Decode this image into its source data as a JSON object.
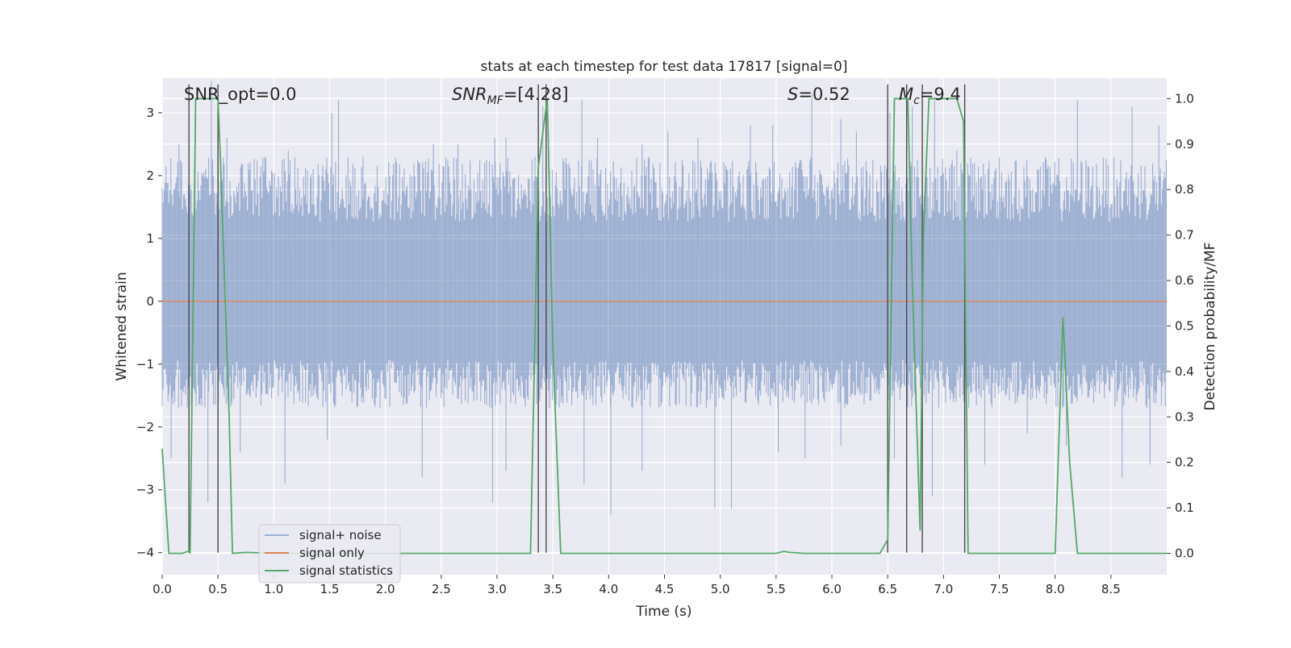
{
  "chart_data": {
    "type": "line",
    "title": "stats at each timestep for test data 17817 [signal=0]",
    "xlabel": "Time (s)",
    "ylabel_left": "Whitened strain",
    "ylabel_right": "Detection probability/MF",
    "xlim": [
      0,
      9.0
    ],
    "ylim_left": [
      -4.35,
      3.55
    ],
    "ylim_right": [
      -0.047,
      1.045
    ],
    "grid": true,
    "background": "#eaeaf2",
    "x_ticks": [
      "0.0",
      "0.5",
      "1.0",
      "1.5",
      "2.0",
      "2.5",
      "3.0",
      "3.5",
      "4.0",
      "4.5",
      "5.0",
      "5.5",
      "6.0",
      "6.5",
      "7.0",
      "7.5",
      "8.0",
      "8.5"
    ],
    "y_ticks_left": [
      "3",
      "2",
      "1",
      "0",
      "−1",
      "−2",
      "−3",
      "−4"
    ],
    "y_ticks_right": [
      "1.0",
      "0.9",
      "0.8",
      "0.7",
      "0.6",
      "0.5",
      "0.4",
      "0.3",
      "0.2",
      "0.1",
      "0.0"
    ],
    "annotations": {
      "snr_opt": "SNR_opt=0.0",
      "snr_mf_sym": "SNR",
      "snr_mf_sub": "MF",
      "snr_mf_val": "=[4.28]",
      "s_sym": "S",
      "s_val": "=0.52",
      "mc_sym": "M",
      "mc_sub": "c",
      "mc_val": "=9.4"
    },
    "legend": {
      "placement": "lower-left",
      "entries": [
        "signal+ noise",
        "signal only",
        "signal statistics"
      ]
    },
    "series": [
      {
        "name": "signal+ noise",
        "axis": "left",
        "color": "#4c72b0",
        "kind": "noise",
        "envelope": [
          -1.7,
          2.3
        ],
        "peaks_up": [
          [
            0.15,
            2.5
          ],
          [
            0.44,
            3.5
          ],
          [
            0.58,
            2.6
          ],
          [
            0.92,
            2.3
          ],
          [
            1.13,
            2.4
          ],
          [
            1.52,
            3.0
          ],
          [
            1.58,
            3.2
          ],
          [
            1.8,
            2.3
          ],
          [
            2.43,
            2.5
          ],
          [
            2.65,
            2.5
          ],
          [
            2.98,
            2.6
          ],
          [
            3.08,
            2.6
          ],
          [
            3.34,
            2.3
          ],
          [
            3.41,
            3.1
          ],
          [
            3.76,
            3.2
          ],
          [
            3.9,
            2.6
          ],
          [
            4.3,
            2.5
          ],
          [
            4.53,
            2.7
          ],
          [
            4.8,
            2.6
          ],
          [
            5.27,
            2.8
          ],
          [
            5.47,
            2.8
          ],
          [
            5.82,
            3.3
          ],
          [
            6.08,
            2.9
          ],
          [
            6.22,
            2.7
          ],
          [
            6.52,
            3.0
          ],
          [
            6.72,
            3.1
          ],
          [
            6.92,
            3.2
          ],
          [
            7.12,
            2.4
          ],
          [
            7.5,
            2.3
          ],
          [
            8.2,
            3.2
          ],
          [
            8.69,
            3.1
          ],
          [
            8.93,
            2.8
          ]
        ],
        "peaks_down": [
          [
            0.08,
            -2.5
          ],
          [
            0.41,
            -3.2
          ],
          [
            0.7,
            -2.4
          ],
          [
            1.1,
            -2.9
          ],
          [
            1.48,
            -2.2
          ],
          [
            2.33,
            -2.8
          ],
          [
            2.96,
            -3.2
          ],
          [
            3.08,
            -2.7
          ],
          [
            3.37,
            -2.4
          ],
          [
            3.78,
            -2.9
          ],
          [
            4.02,
            -3.4
          ],
          [
            4.3,
            -2.7
          ],
          [
            4.95,
            -3.3
          ],
          [
            5.1,
            -3.3
          ],
          [
            5.52,
            -2.4
          ],
          [
            5.76,
            -2.5
          ],
          [
            6.08,
            -2.3
          ],
          [
            6.56,
            -2.5
          ],
          [
            6.9,
            -3.1
          ],
          [
            7.37,
            -2.6
          ],
          [
            7.75,
            -2.1
          ],
          [
            8.1,
            -2.3
          ],
          [
            8.6,
            -2.8
          ],
          [
            8.85,
            -2.6
          ]
        ]
      },
      {
        "name": "signal only",
        "axis": "left",
        "color": "#dd8452",
        "x": [
          0,
          9.0
        ],
        "y": [
          0,
          0
        ]
      },
      {
        "name": "signal statistics",
        "axis": "right",
        "color": "#55a868",
        "x": [
          0.0,
          0.06,
          0.18,
          0.24,
          0.25,
          0.3,
          0.32,
          0.45,
          0.5,
          0.52,
          0.6,
          0.63,
          0.75,
          1.0,
          1.5,
          2.0,
          2.5,
          3.0,
          3.3,
          3.37,
          3.45,
          3.5,
          3.57,
          4.0,
          4.5,
          5.0,
          5.5,
          5.57,
          5.62,
          5.75,
          6.0,
          6.3,
          6.43,
          6.5,
          6.56,
          6.62,
          6.68,
          6.72,
          6.79,
          6.82,
          6.87,
          6.96,
          7.12,
          7.18,
          7.22,
          7.3,
          7.5,
          7.8,
          7.95,
          8.0,
          8.07,
          8.13,
          8.2,
          8.5,
          9.0
        ],
        "y": [
          0.23,
          0.0,
          0.0,
          0.005,
          0.0,
          1.0,
          1.0,
          1.0,
          1.0,
          0.88,
          0.3,
          0.0,
          0.002,
          0.0,
          0.0,
          0.0,
          0.0,
          0.0,
          0.0,
          0.85,
          1.0,
          0.45,
          0.0,
          0.0,
          0.0,
          0.0,
          0.0,
          0.004,
          0.002,
          0.0,
          0.0,
          0.0,
          0.0,
          0.03,
          1.0,
          1.0,
          1.0,
          0.6,
          0.05,
          0.7,
          1.0,
          1.0,
          1.0,
          0.95,
          0.0,
          0.0,
          0.0,
          0.0,
          0.0,
          0.0,
          0.52,
          0.2,
          0.0,
          0.0,
          0.0
        ]
      }
    ],
    "vertical_markers": [
      {
        "x": 0.24,
        "y": [
          -4.0,
          3.45
        ]
      },
      {
        "x": 0.5,
        "y": [
          -4.0,
          3.45
        ]
      },
      {
        "x": 3.37,
        "y": [
          -4.0,
          3.45
        ]
      },
      {
        "x": 3.44,
        "y": [
          -4.0,
          3.45
        ]
      },
      {
        "x": 6.5,
        "y": [
          -4.0,
          3.45
        ]
      },
      {
        "x": 6.67,
        "y": [
          -4.0,
          3.45
        ]
      },
      {
        "x": 6.81,
        "y": [
          -4.0,
          3.45
        ]
      },
      {
        "x": 7.19,
        "y": [
          -4.0,
          3.45
        ]
      }
    ]
  }
}
